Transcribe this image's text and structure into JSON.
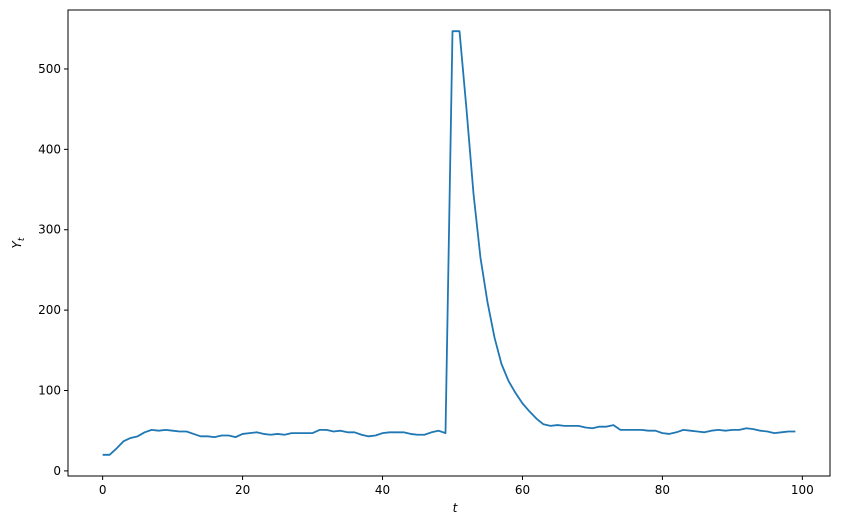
{
  "chart_data": {
    "type": "line",
    "title": "",
    "xlabel": "t",
    "ylabel": "Y_t",
    "xlim": [
      -4.95,
      103.95
    ],
    "ylim": [
      -6.35,
      573.35
    ],
    "xticks": [
      0,
      20,
      40,
      60,
      80,
      100
    ],
    "yticks": [
      0,
      100,
      200,
      300,
      400,
      500
    ],
    "grid": false,
    "line_color": "#1f77b4",
    "series": [
      {
        "x": [
          0,
          1,
          2,
          3,
          4,
          5,
          6,
          7,
          8,
          9,
          10,
          11,
          12,
          13,
          14,
          15,
          16,
          17,
          18,
          19,
          20,
          21,
          22,
          23,
          24,
          25,
          26,
          27,
          28,
          29,
          30,
          31,
          32,
          33,
          34,
          35,
          36,
          37,
          38,
          39,
          40,
          41,
          42,
          43,
          44,
          45,
          46,
          47,
          48,
          49,
          50,
          51,
          52,
          53,
          54,
          55,
          56,
          57,
          58,
          59,
          60,
          61,
          62,
          63,
          64,
          65,
          66,
          67,
          68,
          69,
          70,
          71,
          72,
          73,
          74,
          75,
          76,
          77,
          78,
          79,
          80,
          81,
          82,
          83,
          84,
          85,
          86,
          87,
          88,
          89,
          90,
          91,
          92,
          93,
          94,
          95,
          96,
          97,
          98,
          99
        ],
        "values": [
          20,
          20,
          28,
          37,
          41,
          43,
          48,
          51,
          50,
          51,
          50,
          49,
          49,
          46,
          43,
          43,
          42,
          44,
          44,
          42,
          46,
          47,
          48,
          46,
          45,
          46,
          45,
          47,
          47,
          47,
          47,
          51,
          51,
          49,
          50,
          48,
          48,
          45,
          43,
          44,
          47,
          48,
          48,
          48,
          46,
          45,
          45,
          48,
          50,
          47,
          547,
          547,
          450,
          345,
          265,
          210,
          166,
          133,
          112,
          97,
          84,
          74,
          65,
          58,
          56,
          57,
          56,
          56,
          56,
          54,
          53,
          55,
          55,
          57,
          51,
          51,
          51,
          51,
          50,
          50,
          47,
          46,
          48,
          51,
          50,
          49,
          48,
          50,
          51,
          50,
          51,
          51,
          53,
          52,
          50,
          49,
          47,
          48,
          49,
          49
        ]
      }
    ]
  }
}
